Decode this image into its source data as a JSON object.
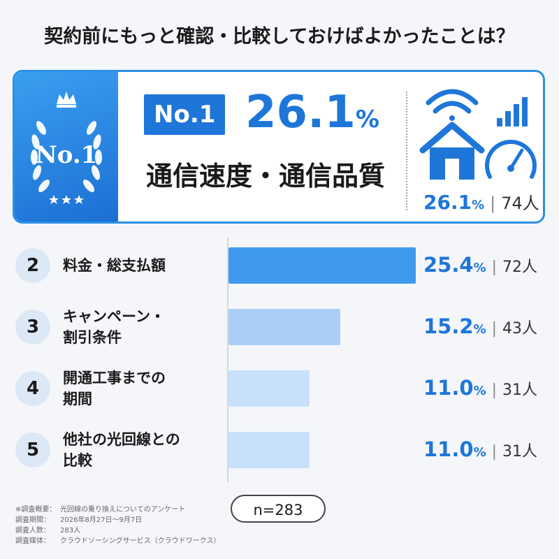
{
  "title": "契約前にもっと確認・比較しておけばよかったことは？",
  "hero": {
    "badge_text": "No.1",
    "chip_text": "No.1",
    "percent": "26.1",
    "percent_unit": "%",
    "label": "通信速度・通信品質",
    "sub_percent": "26.1",
    "sub_unit": "%",
    "sub_count": "74人",
    "accent": "#1e76d8",
    "icons": [
      "house-icon",
      "wifi-icon",
      "signal-bars-icon",
      "speedometer-icon",
      "laurel-icon",
      "crown-icon"
    ]
  },
  "chart_data": {
    "type": "bar",
    "orientation": "horizontal",
    "categories": [
      "料金・総支払額",
      "キャンペーン・割引条件",
      "開通工事までの期間",
      "他社の光回線との比較"
    ],
    "ranks": [
      "2",
      "3",
      "4",
      "5"
    ],
    "label_lines": [
      [
        "料金・総支払額"
      ],
      [
        "キャンペーン・",
        "割引条件"
      ],
      [
        "開通工事までの",
        "期間"
      ],
      [
        "他社の光回線との",
        "比較"
      ]
    ],
    "values": [
      25.4,
      15.2,
      11.0,
      11.0
    ],
    "value_labels": [
      "25.4",
      "15.2",
      "11.0",
      "11.0"
    ],
    "counts": [
      "72人",
      "43人",
      "31人",
      "31人"
    ],
    "unit": "%",
    "xlim": [
      0,
      25.4
    ],
    "colors": [
      "#3f9aee",
      "#a9cff7",
      "#c9e0fa",
      "#c9e0fa"
    ]
  },
  "footer": {
    "lines": [
      {
        "key": "※調査概要：",
        "value": "光回線の乗り換えについてのアンケート"
      },
      {
        "key": "調査期間：",
        "value": "2026年8月27日～9月7日"
      },
      {
        "key": "調査人数：",
        "value": "283人"
      },
      {
        "key": "調査媒体：",
        "value": "クラウドソーシングサービス（クラウドワークス）"
      }
    ],
    "n_label": "n=283"
  }
}
